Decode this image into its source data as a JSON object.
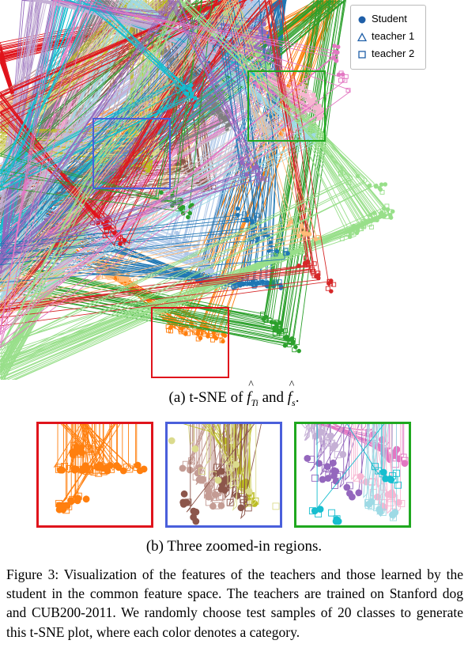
{
  "legend": {
    "items": [
      {
        "label": "Student",
        "marker": "circle"
      },
      {
        "label": "teacher 1",
        "marker": "triangle"
      },
      {
        "label": "teacher 2",
        "marker": "square"
      }
    ],
    "marker_color": "#1f5fa8"
  },
  "captions": {
    "a_prefix": "(a) t-SNE of",
    "a_conj": "and",
    "b": "(b) Three zoomed-in regions.",
    "figure": "Figure 3: Visualization of the features of the teachers and those learned by the student in the common feature space. The teachers are trained on Stanford dog and CUB200-2011. We randomly choose test samples of 20 classes to generate this t-SNE plot, where each color denotes a category."
  },
  "math": {
    "f_symbol": "f",
    "sub_t": "Ti",
    "sub_s": "s",
    "hat": "^",
    "period": "."
  },
  "colors": {
    "zoom_red": "#e0141c",
    "zoom_blue": "#4a5fdb",
    "zoom_green": "#1fa81f"
  },
  "chart_data": {
    "type": "scatter",
    "title": "",
    "xlabel": "",
    "ylabel": "",
    "grid": false,
    "legend_position": "top-right",
    "marker_types": {
      "Student": "circle",
      "teacher 1": "triangle",
      "teacher 2": "square"
    },
    "num_classes": 20,
    "class_colors": [
      "#e0141c",
      "#ff7f0e",
      "#ffbb78",
      "#1f77b4",
      "#aec7e8",
      "#2ca02c",
      "#98df8a",
      "#8c564b",
      "#c49c94",
      "#e377c2",
      "#f7b6d2",
      "#7f7f7f",
      "#c7c7c7",
      "#bcbd22",
      "#dbdb8d",
      "#17becf",
      "#9edae5",
      "#9467bd",
      "#c5b0d5",
      "#d62728"
    ],
    "zoomed_regions": [
      {
        "name": "red",
        "color": "#e0141c"
      },
      {
        "name": "blue",
        "color": "#4a5fdb"
      },
      {
        "name": "green",
        "color": "#1fa81f"
      }
    ]
  }
}
